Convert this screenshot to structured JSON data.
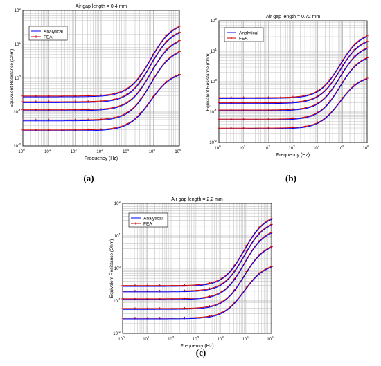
{
  "chart_data": [
    {
      "type": "line",
      "panel_tag": "(a)",
      "title": "Air gap length = 0.4 mm",
      "xlabel": "Frequency (Hz)",
      "ylabel": "Equivalent Resistance (Ohm)",
      "x_scale": "log",
      "y_scale": "log",
      "xlim": [
        1,
        1000000
      ],
      "ylim": [
        0.01,
        100
      ],
      "grid": true,
      "legend_position": "top-left",
      "x_ticks": [
        {
          "base": "10",
          "exp": "0"
        },
        {
          "base": "10",
          "exp": "1"
        },
        {
          "base": "10",
          "exp": "2"
        },
        {
          "base": "10",
          "exp": "3"
        },
        {
          "base": "10",
          "exp": "4"
        },
        {
          "base": "10",
          "exp": "5"
        },
        {
          "base": "10",
          "exp": "6"
        }
      ],
      "y_ticks": [
        {
          "base": "10",
          "exp": "-2"
        },
        {
          "base": "10",
          "exp": "-1"
        },
        {
          "base": "10",
          "exp": "0"
        },
        {
          "base": "10",
          "exp": "1"
        },
        {
          "base": "10",
          "exp": "2"
        }
      ],
      "series": [
        {
          "name": "Analytical",
          "color": "#0000ff",
          "marker": "none"
        },
        {
          "name": "FEA",
          "color": "#cc0000",
          "marker": "*"
        }
      ],
      "curves": [
        {
          "low": 0.28,
          "high": 45
        },
        {
          "low": 0.19,
          "high": 30
        },
        {
          "low": 0.11,
          "high": 17
        },
        {
          "low": 0.055,
          "high": 8
        },
        {
          "low": 0.028,
          "high": 1.6
        }
      ]
    },
    {
      "type": "line",
      "panel_tag": "(b)",
      "title": "Air gap length = 0.72 mm",
      "xlabel": "Frequency (Hz)",
      "ylabel": "Equivalent Resistance (Ohm)",
      "x_scale": "log",
      "y_scale": "log",
      "xlim": [
        1,
        1000000
      ],
      "ylim": [
        0.01,
        100
      ],
      "grid": true,
      "legend_position": "top-right",
      "x_ticks": [
        {
          "base": "10",
          "exp": "0"
        },
        {
          "base": "10",
          "exp": "1"
        },
        {
          "base": "10",
          "exp": "2"
        },
        {
          "base": "10",
          "exp": "3"
        },
        {
          "base": "10",
          "exp": "4"
        },
        {
          "base": "10",
          "exp": "5"
        },
        {
          "base": "10",
          "exp": "6"
        }
      ],
      "y_ticks": [
        {
          "base": "10",
          "exp": "-2"
        },
        {
          "base": "10",
          "exp": "-1"
        },
        {
          "base": "10",
          "exp": "0"
        },
        {
          "base": "10",
          "exp": "1"
        },
        {
          "base": "10",
          "exp": "2"
        }
      ],
      "series": [
        {
          "name": "Analytical",
          "color": "#0000ff",
          "marker": "none"
        },
        {
          "name": "FEA",
          "color": "#cc0000",
          "marker": "*"
        }
      ],
      "curves": [
        {
          "low": 0.28,
          "high": 42
        },
        {
          "low": 0.19,
          "high": 28
        },
        {
          "low": 0.11,
          "high": 17
        },
        {
          "low": 0.055,
          "high": 8
        },
        {
          "low": 0.028,
          "high": 1.6
        }
      ]
    },
    {
      "type": "line",
      "panel_tag": "(c)",
      "title": "Air gap length = 2.2 mm",
      "xlabel": "Frequency (Hz)",
      "ylabel": "Equivalent Resistance (Ohm)",
      "x_scale": "log",
      "y_scale": "log",
      "xlim": [
        1,
        1000000
      ],
      "ylim": [
        0.01,
        100
      ],
      "grid": true,
      "legend_position": "top-left",
      "x_ticks": [
        {
          "base": "10",
          "exp": "0"
        },
        {
          "base": "10",
          "exp": "1"
        },
        {
          "base": "10",
          "exp": "2"
        },
        {
          "base": "10",
          "exp": "3"
        },
        {
          "base": "10",
          "exp": "4"
        },
        {
          "base": "10",
          "exp": "5"
        },
        {
          "base": "10",
          "exp": "6"
        }
      ],
      "y_ticks": [
        {
          "base": "10",
          "exp": "-2"
        },
        {
          "base": "10",
          "exp": "-1"
        },
        {
          "base": "10",
          "exp": "0"
        },
        {
          "base": "10",
          "exp": "1"
        },
        {
          "base": "10",
          "exp": "2"
        }
      ],
      "series": [
        {
          "name": "Analytical",
          "color": "#0000ff",
          "marker": "none"
        },
        {
          "name": "FEA",
          "color": "#cc0000",
          "marker": "*"
        }
      ],
      "curves": [
        {
          "low": 0.28,
          "high": 45
        },
        {
          "low": 0.19,
          "high": 30
        },
        {
          "low": 0.11,
          "high": 17
        },
        {
          "low": 0.055,
          "high": 6
        },
        {
          "low": 0.028,
          "high": 1.4
        }
      ]
    }
  ]
}
